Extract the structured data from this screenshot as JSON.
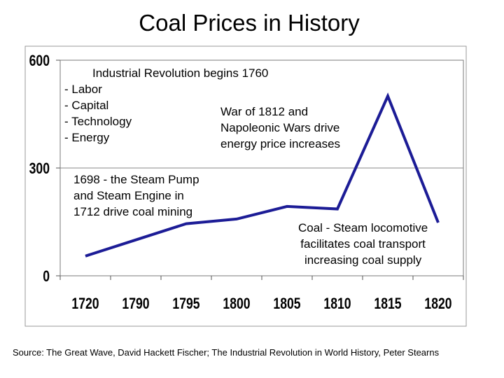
{
  "chart_data": {
    "type": "line",
    "title": "Coal Prices in History",
    "categories": [
      "1720",
      "1790",
      "1795",
      "1800",
      "1805",
      "1810",
      "1815",
      "1820"
    ],
    "series": [
      {
        "values": [
          55,
          100,
          145,
          158,
          193,
          186,
          500,
          148
        ]
      }
    ],
    "y_ticks": [
      "0",
      "300",
      "600"
    ],
    "ylim": [
      0,
      600
    ],
    "grid": "horizontal at 300",
    "line_color": "#1c1c96",
    "annotations": [
      [
        "Industrial Revolution begins 1760",
        "- Labor",
        "- Capital",
        "- Technology",
        "- Energy"
      ],
      [
        "War of 1812 and",
        "Napoleonic Wars drive",
        "energy price increases"
      ],
      [
        "1698 - the Steam Pump",
        "and Steam Engine in",
        "1712 drive coal mining"
      ],
      [
        "Coal - Steam locomotive",
        "facilitates coal transport",
        "increasing coal supply"
      ]
    ],
    "source": "Source: The Great Wave, David Hackett Fischer; The Industrial Revolution in World History, Peter Stearns"
  }
}
